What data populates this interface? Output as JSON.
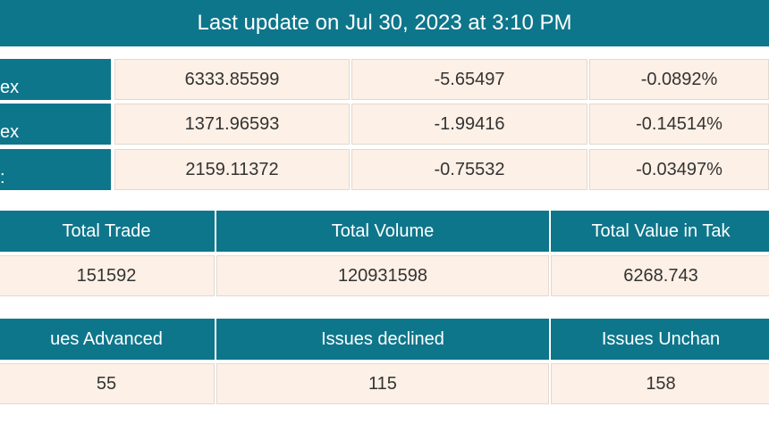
{
  "header": {
    "title": "Last update on Jul 30, 2023 at 3:10 PM"
  },
  "index_table": {
    "rows": [
      [
        "ex",
        "6333.85599",
        "-5.65497",
        "-0.0892%"
      ],
      [
        "ex",
        "1371.96593",
        "-1.99416",
        "-0.14514%"
      ],
      [
        ":",
        "2159.11372",
        "-0.75532",
        "-0.03497%"
      ]
    ]
  },
  "summary_tables": [
    {
      "headers": [
        "Total Trade",
        "Total Volume",
        "Total Value in Tak"
      ],
      "values": [
        "151592",
        "120931598",
        "6268.743"
      ]
    },
    {
      "headers": [
        "ues Advanced",
        "Issues declined",
        "Issues Unchan"
      ],
      "values": [
        "55",
        "115",
        "158"
      ]
    }
  ]
}
